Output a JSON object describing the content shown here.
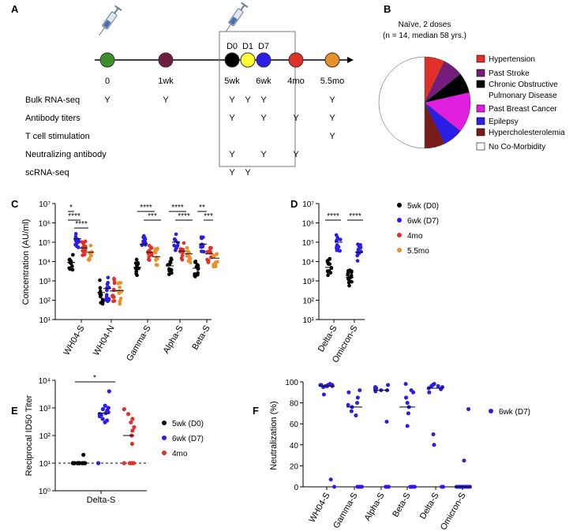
{
  "panels": {
    "A": "A",
    "B": "B",
    "C": "C",
    "D": "D",
    "E": "E",
    "F": "F"
  },
  "timeline": {
    "points": [
      {
        "label": "0",
        "color": "#3c8f2c"
      },
      {
        "label": "1wk",
        "color": "#6e1f42"
      },
      {
        "label": "5wk",
        "color": "#000000",
        "top": "D0"
      },
      {
        "label": "",
        "color": "#ffff33",
        "top": "D1"
      },
      {
        "label": "6wk",
        "color": "#2b1de6",
        "top": "D7"
      },
      {
        "label": "4mo",
        "color": "#e0302a"
      },
      {
        "label": "5.5mo",
        "color": "#e8902a"
      }
    ],
    "assays": [
      {
        "name": "Bulk RNA-seq",
        "marks": [
          "Y",
          "Y",
          "Y",
          "Y",
          "Y",
          "",
          "Y"
        ]
      },
      {
        "name": "Antibody titers",
        "marks": [
          "",
          "",
          "Y",
          "",
          "Y",
          "Y",
          "Y"
        ]
      },
      {
        "name": "T cell stimulation",
        "marks": [
          "",
          "",
          "",
          "",
          "",
          "",
          "Y"
        ]
      },
      {
        "name": "Neutralizing antibody",
        "marks": [
          "",
          "",
          "Y",
          "",
          "Y",
          "Y",
          ""
        ]
      },
      {
        "name": "scRNA-seq",
        "marks": [
          "",
          "",
          "Y",
          "Y",
          "",
          "",
          ""
        ]
      }
    ],
    "mark": "Y"
  },
  "pie": {
    "title": "Naïve, 2 doses",
    "subtitle": "(n = 14, median 58 yrs.)",
    "slices": [
      {
        "label": "Hypertension",
        "color": "#e0302a",
        "value": 1
      },
      {
        "label": "Past Stroke",
        "color": "#741d7c",
        "value": 1
      },
      {
        "label": "Chronic Obstructive Pulmonary Disease",
        "line1": "Chronic Obstructive",
        "line2": "Pulmonary Disease",
        "color": "#000000",
        "value": 1
      },
      {
        "label": "Past Breast Cancer",
        "color": "#e11de0",
        "value": 2
      },
      {
        "label": "Epilepsy",
        "color": "#2a1de8",
        "value": 1
      },
      {
        "label": "Hypercholesterolemia",
        "color": "#7a1a1a",
        "value": 1
      },
      {
        "label": "No Co-Morbidity",
        "color": "#ffffff",
        "value": 7
      }
    ]
  },
  "legend_cd": [
    {
      "label": "5wk (D0)",
      "color": "#000000"
    },
    {
      "label": "6wk (D7)",
      "color": "#2b1de6"
    },
    {
      "label": "4mo",
      "color": "#e0302a"
    },
    {
      "label": "5.5mo",
      "color": "#e8902a"
    }
  ],
  "legend_e": [
    {
      "label": "5wk (D0)",
      "color": "#000000"
    },
    {
      "label": "6wk (D7)",
      "color": "#2b1de6"
    },
    {
      "label": "4mo",
      "color": "#e0302a"
    }
  ],
  "legend_f": [
    {
      "label": "6wk (D7)",
      "color": "#2b1de6"
    }
  ],
  "chart_data": [
    {
      "panel": "C",
      "type": "scatter",
      "ylabel": "Concentration (AU/ml)",
      "yscale": "log",
      "ylim": [
        10,
        10000000
      ],
      "yticks": [
        "10¹",
        "10²",
        "10³",
        "10⁴",
        "10⁵",
        "10⁶",
        "10⁷"
      ],
      "categories": [
        "WH04-S",
        "WH04-N",
        "Gamma-S",
        "Alpha-S",
        "Beta-S"
      ],
      "series": [
        {
          "name": "5wk (D0)",
          "color": "#000000",
          "median": [
            9000,
            250,
            5000,
            6000,
            4500
          ]
        },
        {
          "name": "6wk (D7)",
          "color": "#2b1de6",
          "median": [
            150000,
            400,
            80000,
            100000,
            80000
          ]
        },
        {
          "name": "4mo",
          "color": "#e0302a",
          "median": [
            50000,
            300,
            30000,
            35000,
            25000
          ]
        },
        {
          "name": "5.5mo",
          "color": "#e8902a",
          "median": [
            30000,
            320,
            18000,
            25000,
            15000
          ]
        }
      ],
      "significance": [
        {
          "category": "WH04-S",
          "label": "*"
        },
        {
          "category": "WH04-S",
          "label": "****"
        },
        {
          "category": "WH04-S",
          "label": "****"
        },
        {
          "category": "Gamma-S",
          "label": "****"
        },
        {
          "category": "Gamma-S",
          "label": "***"
        },
        {
          "category": "Alpha-S",
          "label": "****"
        },
        {
          "category": "Alpha-S",
          "label": "****"
        },
        {
          "category": "Beta-S",
          "label": "**"
        },
        {
          "category": "Beta-S",
          "label": "***"
        }
      ]
    },
    {
      "panel": "D",
      "type": "scatter",
      "yscale": "log",
      "ylim": [
        10,
        10000000
      ],
      "yticks": [
        "10¹",
        "10²",
        "10³",
        "10⁴",
        "10⁵",
        "10⁶",
        "10⁷"
      ],
      "categories": [
        "Delta-S",
        "Omicron-S"
      ],
      "series": [
        {
          "name": "5wk (D0)",
          "color": "#000000",
          "median": [
            5000,
            1500
          ]
        },
        {
          "name": "6wk (D7)",
          "color": "#2b1de6",
          "median": [
            100000,
            30000
          ]
        }
      ],
      "significance": [
        {
          "category": "Delta-S",
          "label": "****"
        },
        {
          "category": "Omicron-S",
          "label": "****"
        }
      ]
    },
    {
      "panel": "E",
      "type": "scatter",
      "ylabel": "Reciprocal ID50 Titer",
      "yscale": "log",
      "ylim": [
        1,
        10000
      ],
      "yticks": [
        "10⁰",
        "10¹",
        "10²",
        "10³",
        "10⁴"
      ],
      "categories": [
        "Delta-S"
      ],
      "series": [
        {
          "name": "5wk (D0)",
          "color": "#000000",
          "values": [
            10,
            10,
            10,
            10,
            10,
            10,
            10,
            10,
            10,
            10,
            10,
            10,
            10,
            20
          ]
        },
        {
          "name": "6wk (D7)",
          "color": "#2b1de6",
          "values": [
            10,
            300,
            350,
            400,
            500,
            550,
            600,
            650,
            700,
            800,
            900,
            1000,
            1200,
            4000
          ]
        },
        {
          "name": "4mo",
          "color": "#e0302a",
          "values": [
            10,
            10,
            10,
            10,
            10,
            50,
            100,
            150,
            200,
            300,
            400,
            600,
            900
          ]
        }
      ],
      "significance": [
        {
          "label": "*"
        }
      ],
      "dashed_line": 10
    },
    {
      "panel": "F",
      "type": "scatter",
      "ylabel": "Neutralization (%)",
      "ylim": [
        0,
        100
      ],
      "yticks": [
        "0",
        "20",
        "40",
        "60",
        "80",
        "100"
      ],
      "categories": [
        "WH04-S",
        "Gamma-S",
        "Alpha-S",
        "Beta-S",
        "Delta-S",
        "Omicron-S"
      ],
      "series": [
        {
          "name": "6wk (D7)",
          "color": "#2b1de6",
          "values": [
            [
              98,
              97,
              97,
              96,
              97,
              96,
              95,
              97,
              96,
              88,
              7,
              0
            ],
            [
              92,
              90,
              85,
              80,
              78,
              76,
              72,
              68,
              0,
              0,
              0,
              0
            ],
            [
              97,
              95,
              94,
              93,
              92,
              91,
              94,
              92,
              62,
              0,
              0,
              0
            ],
            [
              98,
              92,
              90,
              85,
              80,
              76,
              70,
              58,
              0,
              0,
              0,
              0
            ],
            [
              98,
              97,
              96,
              96,
              95,
              94,
              93,
              90,
              50,
              40,
              0,
              0
            ],
            [
              74,
              25,
              0,
              0,
              0,
              0,
              0,
              0,
              0,
              0,
              0,
              0
            ]
          ]
        }
      ]
    }
  ]
}
